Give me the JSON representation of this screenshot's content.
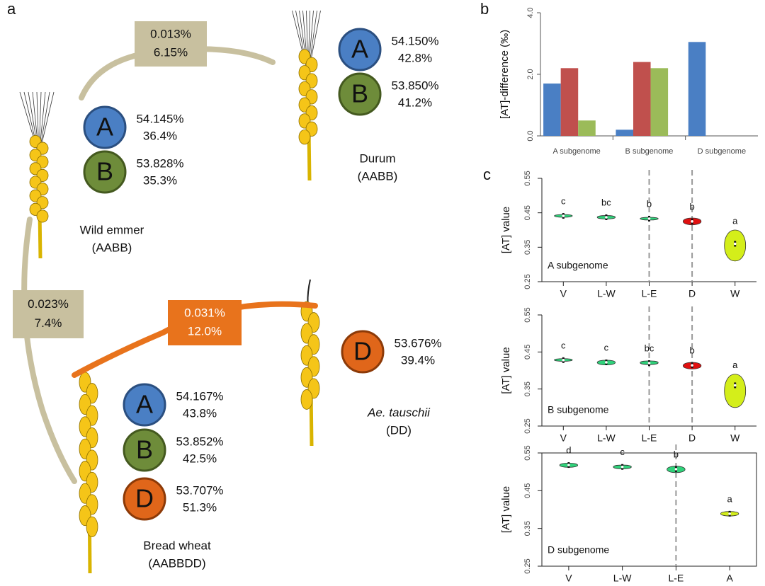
{
  "panel_labels": [
    "a",
    "b",
    "c"
  ],
  "diagram": {
    "species": [
      {
        "name": "Wild emmer",
        "genome": "(AABB)",
        "subgenomes": [
          {
            "letter": "A",
            "lines": [
              "54.145%",
              "36.4%"
            ]
          },
          {
            "letter": "B",
            "lines": [
              "53.828%",
              "35.3%"
            ]
          }
        ]
      },
      {
        "name": "Durum",
        "genome": "(AABB)",
        "subgenomes": [
          {
            "letter": "A",
            "lines": [
              "54.150%",
              "42.8%"
            ]
          },
          {
            "letter": "B",
            "lines": [
              "53.850%",
              "41.2%"
            ]
          }
        ]
      },
      {
        "name": "Bread wheat",
        "genome": "(AABBDD)",
        "subgenomes": [
          {
            "letter": "A",
            "lines": [
              "54.167%",
              "43.8%"
            ]
          },
          {
            "letter": "B",
            "lines": [
              "53.852%",
              "42.5%"
            ]
          },
          {
            "letter": "D",
            "lines": [
              "53.707%",
              "51.3%"
            ]
          }
        ]
      },
      {
        "name": "Ae. tauschii",
        "genome": "(DD)",
        "subgenomes": [
          {
            "letter": "D",
            "lines": [
              "53.676%",
              "39.4%"
            ]
          }
        ]
      }
    ],
    "arrows": [
      {
        "labels": [
          "0.013%",
          "6.15%"
        ]
      },
      {
        "labels": [
          "0.023%",
          "7.4%"
        ]
      },
      {
        "labels": [
          "0.031%",
          "12.0%"
        ]
      }
    ]
  },
  "chart_data": [
    {
      "type": "bar",
      "y_label": "[AT]-difference (‰)",
      "categories": [
        "A subgenome",
        "B subgenome",
        "D subgenome"
      ],
      "series": [
        {
          "color": "#4a7fc4",
          "values": [
            1.7,
            0.2,
            3.05
          ]
        },
        {
          "color": "#c0504d",
          "values": [
            2.2,
            2.4,
            null
          ]
        },
        {
          "color": "#9bbb59",
          "values": [
            0.5,
            2.2,
            null
          ]
        }
      ],
      "ylim": [
        0,
        4
      ],
      "yticks": [
        {
          "value": 0,
          "label": "0.0"
        },
        {
          "value": 2,
          "label": "2.0"
        },
        {
          "value": 4,
          "label": "4.0"
        }
      ]
    },
    {
      "type": "violin",
      "y_label": "[AT] value",
      "label": "A subgenome",
      "categories": [
        "V",
        "L-W",
        "L-E",
        "D",
        "W"
      ],
      "values": [
        0.441,
        0.437,
        0.433,
        0.425,
        0.36
      ],
      "lows": [
        0.437,
        0.432,
        0.429,
        0.415,
        0.31
      ],
      "highs": [
        0.445,
        0.442,
        0.437,
        0.435,
        0.4
      ],
      "annotations": [
        "c",
        "bc",
        "b",
        "b",
        "a"
      ],
      "colors": [
        "#2fd27a",
        "#2fd27a",
        "#2fd27a",
        "#e01010",
        "#d4ee1a"
      ],
      "ylim": [
        0.25,
        0.55
      ],
      "yticks": [
        0.25,
        0.35,
        0.45,
        0.55
      ]
    },
    {
      "type": "violin",
      "y_label": "[AT] value",
      "label": "B subgenome",
      "categories": [
        "V",
        "L-W",
        "L-E",
        "D",
        "W"
      ],
      "values": [
        0.428,
        0.422,
        0.42,
        0.414,
        0.36
      ],
      "lows": [
        0.425,
        0.415,
        0.416,
        0.404,
        0.3
      ],
      "highs": [
        0.432,
        0.428,
        0.426,
        0.422,
        0.39
      ],
      "annotations": [
        "c",
        "c",
        "bc",
        "b",
        "a"
      ],
      "colors": [
        "#2fd27a",
        "#2fd27a",
        "#2fd27a",
        "#e01010",
        "#d4ee1a"
      ],
      "ylim": [
        0.25,
        0.55
      ],
      "yticks": [
        0.25,
        0.35,
        0.45,
        0.55
      ]
    },
    {
      "type": "violin",
      "y_label": "[AT] value",
      "label": "D subgenome",
      "categories": [
        "V",
        "L-W",
        "L-E",
        "A"
      ],
      "values": [
        0.518,
        0.513,
        0.507,
        0.389
      ],
      "lows": [
        0.512,
        0.508,
        0.498,
        0.383
      ],
      "highs": [
        0.523,
        0.518,
        0.515,
        0.395
      ],
      "annotations": [
        "d",
        "c",
        "b",
        "a"
      ],
      "colors": [
        "#2fd27a",
        "#2fd27a",
        "#2fd27a",
        "#d4ee1a"
      ],
      "ylim": [
        0.25,
        0.55
      ],
      "yticks": [
        0.25,
        0.35,
        0.45,
        0.55
      ]
    }
  ]
}
